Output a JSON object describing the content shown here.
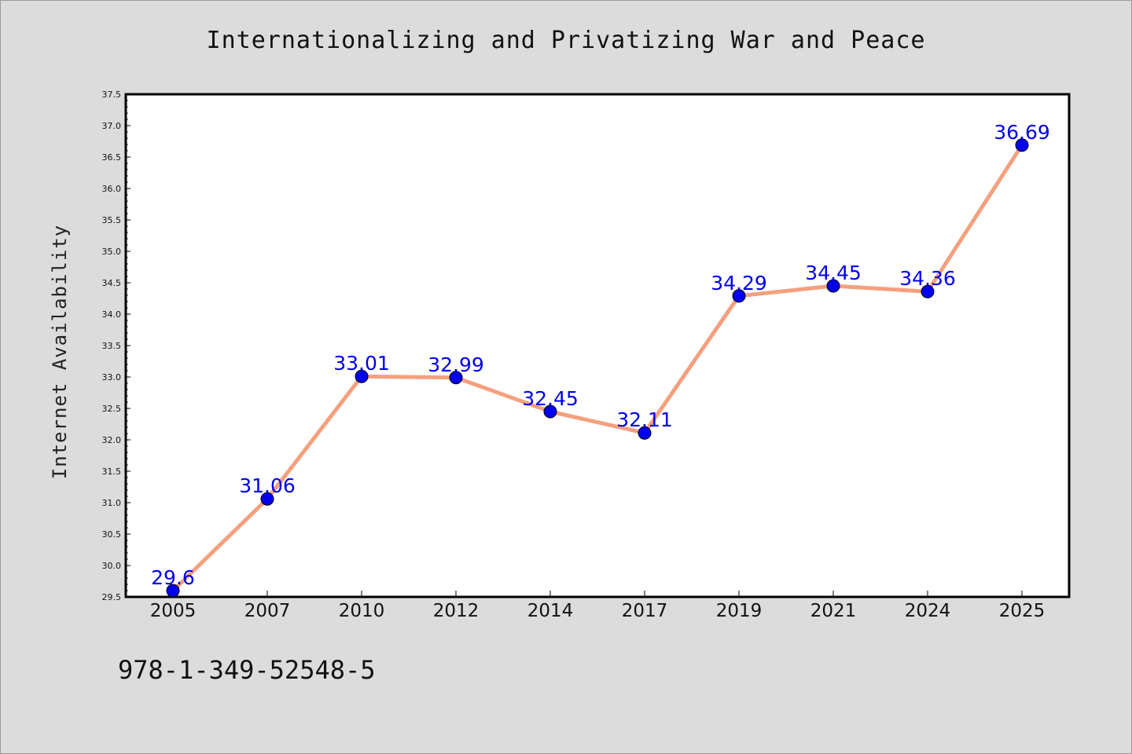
{
  "title": "Internationalizing and Privatizing War and Peace",
  "footer_text": "978-1-349-52548-5",
  "colors": {
    "background": "#dcdcdc",
    "plot_background": "#ffffff",
    "line": "#f4a07e",
    "marker": "#0000ee",
    "data_label": "#0000ee"
  },
  "chart_data": {
    "type": "line",
    "title": "Internationalizing and Privatizing War and Peace",
    "xlabel": "",
    "ylabel": "Internet Availability",
    "categories": [
      "2005",
      "2007",
      "2010",
      "2012",
      "2014",
      "2017",
      "2019",
      "2021",
      "2024",
      "2025"
    ],
    "series": [
      {
        "values": [
          29.6,
          31.06,
          33.01,
          32.99,
          32.45,
          32.11,
          34.29,
          34.45,
          34.36,
          36.69
        ],
        "labels": [
          "29.6",
          "31.06",
          "33.01",
          "32.99",
          "32.45",
          "32.11",
          "34.29",
          "34.45",
          "34.36",
          "36.69"
        ]
      }
    ],
    "ylim": [
      29.5,
      37.5
    ],
    "yticks": [
      "29.5",
      "30.0",
      "30.5",
      "31.0",
      "31.5",
      "32.0",
      "32.5",
      "33.0",
      "33.5",
      "34.0",
      "34.5",
      "35.0",
      "35.5",
      "36.0",
      "36.5",
      "37.0",
      "37.5"
    ],
    "grid": false,
    "legend": "none"
  }
}
